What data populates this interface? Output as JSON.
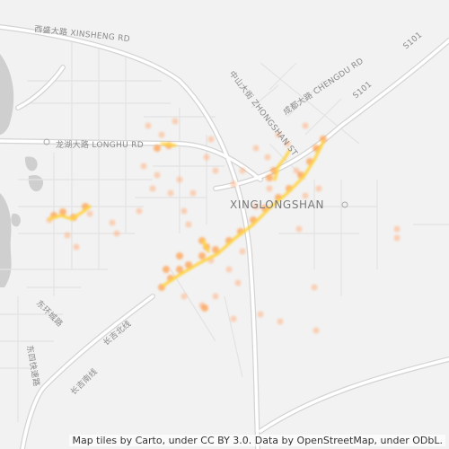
{
  "map": {
    "place_labels": [
      {
        "id": "xinglongshan",
        "text": "XINGLONGSHAN"
      }
    ],
    "road_labels": [
      {
        "id": "xinsheng-rd",
        "text": "西盛大路 XINSHENG RD"
      },
      {
        "id": "longhu-rd",
        "text": "龙湖大路 LONGHU RD"
      },
      {
        "id": "zhongshan-st",
        "text": "中山大街 ZHONGSHAN ST"
      },
      {
        "id": "chengdu-rd",
        "text": "成都大路 CHENGDU RD"
      },
      {
        "id": "s101-a",
        "text": "S101"
      },
      {
        "id": "s101-b",
        "text": "S101"
      },
      {
        "id": "dongfeng",
        "text": "东环城路"
      },
      {
        "id": "changji-north",
        "text": "长吉北线"
      },
      {
        "id": "changji-south",
        "text": "长吉南线"
      },
      {
        "id": "dongsi-expressway",
        "text": "东四快速路"
      }
    ],
    "colors": {
      "background": "#f2f2f2",
      "major_road": "#ffffff",
      "road_casing": "#d0d0d0",
      "minor_road": "#e0e0e0",
      "water": "#c8c8c8",
      "heat_low": "#ffb080",
      "heat_mid": "#ffa050",
      "heat_high": "#ffd23c"
    }
  },
  "attribution": "Map tiles by Carto, under CC BY 3.0. Data by OpenStreetMap, under ODbL."
}
